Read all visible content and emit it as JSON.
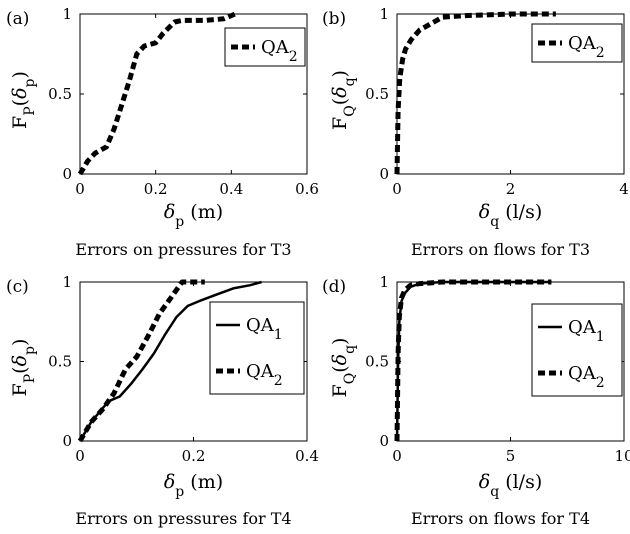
{
  "chart_data": [
    {
      "panel": "(a)",
      "type": "line",
      "xlabel": "δp (m)",
      "ylabel": "FP(δp)",
      "caption": "Errors on pressures for T3",
      "xlim": [
        0,
        0.6
      ],
      "ylim": [
        0,
        1
      ],
      "xticks": [
        "0",
        "0.2",
        "0.4",
        "0.6"
      ],
      "yticks": [
        "0",
        "0.5",
        "1"
      ],
      "legend_position": "top-right",
      "series": [
        {
          "name": "QA2",
          "style": "dashed",
          "x": [
            0,
            0.02,
            0.04,
            0.07,
            0.09,
            0.11,
            0.13,
            0.15,
            0.17,
            0.2,
            0.22,
            0.25,
            0.27,
            0.33,
            0.38,
            0.41
          ],
          "y": [
            0,
            0.08,
            0.13,
            0.17,
            0.28,
            0.43,
            0.58,
            0.75,
            0.8,
            0.82,
            0.88,
            0.95,
            0.96,
            0.96,
            0.97,
            1.0
          ]
        }
      ]
    },
    {
      "panel": "(b)",
      "type": "line",
      "xlabel": "δq (l/s)",
      "ylabel": "FQ(δq)",
      "caption": "Errors on flows for T3",
      "xlim": [
        0,
        4
      ],
      "ylim": [
        0,
        1
      ],
      "xticks": [
        "0",
        "2",
        "4"
      ],
      "yticks": [
        "0",
        "0.5",
        "1"
      ],
      "legend_position": "top-right",
      "series": [
        {
          "name": "QA2",
          "style": "dashed",
          "x": [
            0,
            0.02,
            0.05,
            0.1,
            0.15,
            0.25,
            0.4,
            0.6,
            0.8,
            1.2,
            2.0,
            2.8
          ],
          "y": [
            0,
            0.4,
            0.6,
            0.72,
            0.78,
            0.84,
            0.9,
            0.94,
            0.98,
            0.99,
            1.0,
            1.0
          ]
        }
      ]
    },
    {
      "panel": "(c)",
      "type": "line",
      "xlabel": "δp (m)",
      "ylabel": "FP(δp)",
      "caption": "Errors on pressures for T4",
      "xlim": [
        0,
        0.4
      ],
      "ylim": [
        0,
        1
      ],
      "xticks": [
        "0",
        "0.2",
        "0.4"
      ],
      "yticks": [
        "0",
        "0.5",
        "1"
      ],
      "legend_position": "top-right",
      "series": [
        {
          "name": "QA1",
          "style": "solid",
          "x": [
            0,
            0.02,
            0.05,
            0.07,
            0.09,
            0.11,
            0.13,
            0.15,
            0.17,
            0.19,
            0.21,
            0.24,
            0.27,
            0.3,
            0.32
          ],
          "y": [
            0,
            0.12,
            0.25,
            0.28,
            0.36,
            0.45,
            0.55,
            0.67,
            0.78,
            0.85,
            0.88,
            0.92,
            0.96,
            0.98,
            1.0
          ]
        },
        {
          "name": "QA2",
          "style": "dashed",
          "x": [
            0,
            0.02,
            0.04,
            0.06,
            0.08,
            0.1,
            0.12,
            0.14,
            0.16,
            0.18,
            0.2,
            0.22
          ],
          "y": [
            0,
            0.12,
            0.2,
            0.3,
            0.45,
            0.53,
            0.66,
            0.8,
            0.9,
            1.0,
            1.0,
            1.0
          ]
        }
      ]
    },
    {
      "panel": "(d)",
      "type": "line",
      "xlabel": "δq (l/s)",
      "ylabel": "FQ(δq)",
      "caption": "Errors on flows for T4",
      "xlim": [
        0,
        10
      ],
      "ylim": [
        0,
        1
      ],
      "xticks": [
        "0",
        "5",
        "10"
      ],
      "yticks": [
        "0",
        "0.5",
        "1"
      ],
      "legend_position": "top-right",
      "series": [
        {
          "name": "QA1",
          "style": "solid",
          "x": [
            0,
            0.05,
            0.1,
            0.2,
            0.35,
            0.6,
            1.0,
            2.0,
            4.0,
            6.8
          ],
          "y": [
            0,
            0.5,
            0.75,
            0.88,
            0.93,
            0.97,
            0.99,
            1.0,
            1.0,
            1.0
          ]
        },
        {
          "name": "QA2",
          "style": "dashed",
          "x": [
            0,
            0.05,
            0.1,
            0.2,
            0.35,
            0.6,
            1.0,
            2.0,
            4.0,
            6.8
          ],
          "y": [
            0,
            0.55,
            0.78,
            0.9,
            0.95,
            0.98,
            0.99,
            1.0,
            1.0,
            1.0
          ]
        }
      ]
    }
  ]
}
